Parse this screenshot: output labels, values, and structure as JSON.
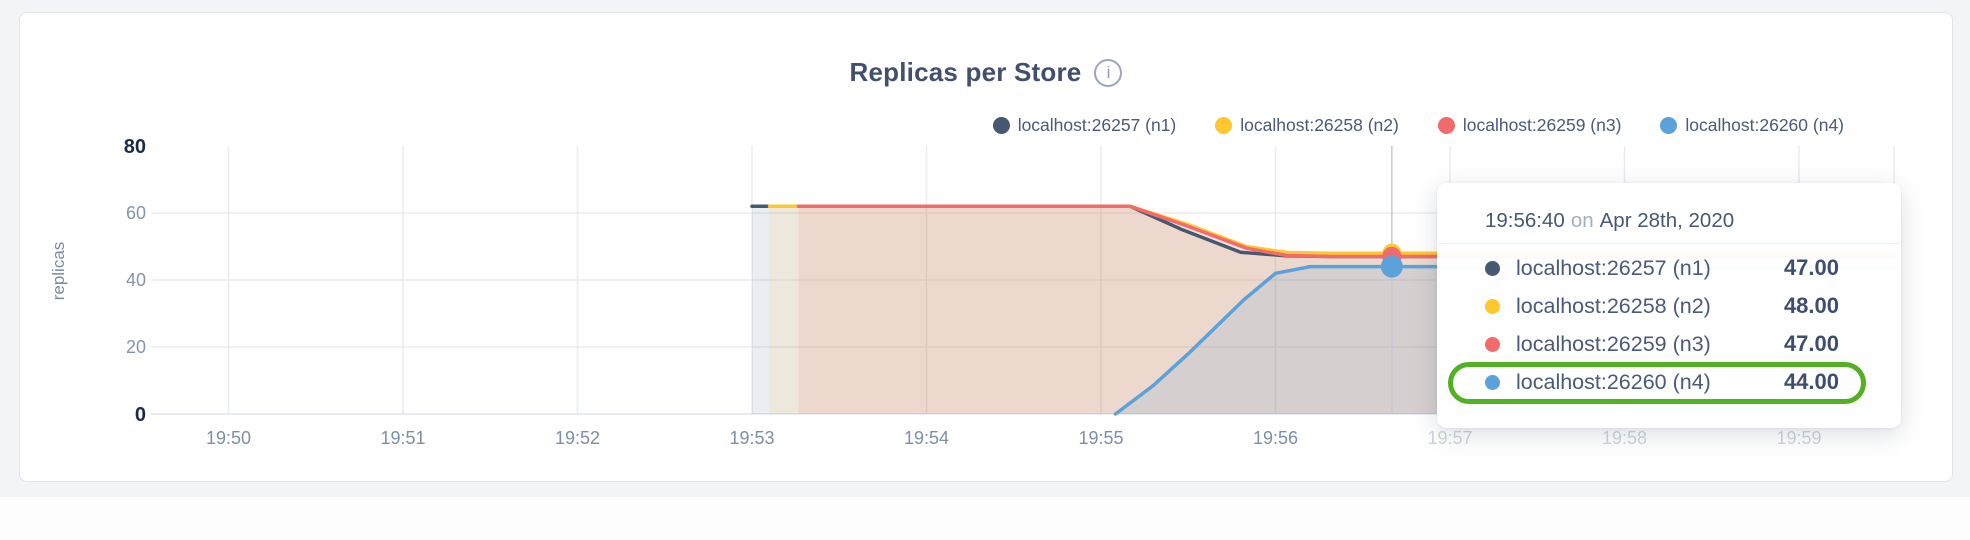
{
  "card": {
    "title": "Replicas per Store",
    "info_glyph": "i"
  },
  "chart_data": {
    "type": "area",
    "title": "Replicas per Store",
    "xlabel": "",
    "ylabel": "replicas",
    "ylim": [
      0,
      80
    ],
    "grid": true,
    "legend_position": "top-right",
    "x_unit": "seconds after 19:50:00",
    "y_ticks": [
      {
        "value": 0,
        "label": "0",
        "bold": true
      },
      {
        "value": 20,
        "label": "20",
        "bold": false
      },
      {
        "value": 40,
        "label": "40",
        "bold": false
      },
      {
        "value": 60,
        "label": "60",
        "bold": false
      },
      {
        "value": 80,
        "label": "80",
        "bold": true
      }
    ],
    "x_ticks": [
      {
        "t": 0,
        "label": "19:50"
      },
      {
        "t": 60,
        "label": "19:51"
      },
      {
        "t": 120,
        "label": "19:52"
      },
      {
        "t": 180,
        "label": "19:53"
      },
      {
        "t": 240,
        "label": "19:54"
      },
      {
        "t": 300,
        "label": "19:55"
      },
      {
        "t": 360,
        "label": "19:56"
      },
      {
        "t": 420,
        "label": "19:57"
      },
      {
        "t": 480,
        "label": "19:58"
      },
      {
        "t": 540,
        "label": "19:59"
      }
    ],
    "series": [
      {
        "name": "localhost:26257 (n1)",
        "color": "#475872",
        "fill_opacity": 0.11,
        "points": [
          [
            180,
            62
          ],
          [
            310,
            62
          ],
          [
            328,
            55
          ],
          [
            348,
            48.3
          ],
          [
            364,
            47.2
          ],
          [
            379,
            47
          ],
          [
            573,
            47
          ]
        ]
      },
      {
        "name": "localhost:26258 (n2)",
        "color": "#fec72e",
        "fill_opacity": 0.1,
        "points": [
          [
            186,
            62
          ],
          [
            310,
            62
          ],
          [
            330,
            56.5
          ],
          [
            350,
            50
          ],
          [
            364,
            48.2
          ],
          [
            379,
            48
          ],
          [
            573,
            48
          ]
        ]
      },
      {
        "name": "localhost:26259 (n3)",
        "color": "#f26b6b",
        "fill_opacity": 0.13,
        "points": [
          [
            196,
            62
          ],
          [
            310,
            62
          ],
          [
            330,
            56
          ],
          [
            350,
            49.5
          ],
          [
            364,
            47.3
          ],
          [
            379,
            47
          ],
          [
            573,
            47
          ]
        ]
      },
      {
        "name": "localhost:26260 (n4)",
        "color": "#5aa2d9",
        "fill_opacity": 0.16,
        "points": [
          [
            305,
            0
          ],
          [
            318,
            8.5
          ],
          [
            330,
            18
          ],
          [
            349,
            34
          ],
          [
            360,
            42
          ],
          [
            372,
            44
          ],
          [
            573,
            44
          ]
        ]
      }
    ],
    "hover": {
      "t": 400,
      "time_label": "19:56:40",
      "values": [
        47,
        48,
        47,
        44
      ]
    }
  },
  "tooltip": {
    "time": "19:56:40",
    "connector": "on",
    "date": "Apr 28th, 2020",
    "rows": [
      {
        "label": "localhost:26257 (n1)",
        "value": "47.00",
        "color": "#475872",
        "highlighted": false
      },
      {
        "label": "localhost:26258 (n2)",
        "value": "48.00",
        "color": "#fec72e",
        "highlighted": false
      },
      {
        "label": "localhost:26259 (n3)",
        "value": "47.00",
        "color": "#f26b6b",
        "highlighted": false
      },
      {
        "label": "localhost:26260 (n4)",
        "value": "44.00",
        "color": "#5aa2d9",
        "highlighted": true
      }
    ],
    "annotation_color": "#53b022"
  }
}
